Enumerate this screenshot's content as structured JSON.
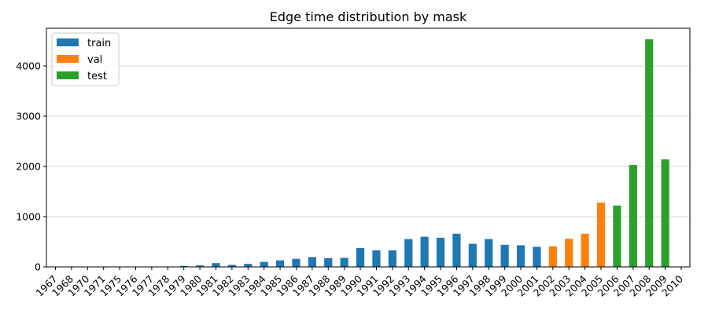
{
  "chart_data": {
    "type": "bar",
    "title": "Edge time distribution by mask",
    "xlabel": "",
    "ylabel": "",
    "ylim": [
      0,
      4750
    ],
    "yticks": [
      0,
      1000,
      2000,
      3000,
      4000
    ],
    "grid": "horizontal",
    "legend_position": "top-left",
    "categories": [
      "1967",
      "1968",
      "1970",
      "1971",
      "1975",
      "1976",
      "1977",
      "1978",
      "1979",
      "1980",
      "1981",
      "1982",
      "1983",
      "1984",
      "1985",
      "1986",
      "1987",
      "1988",
      "1989",
      "1990",
      "1991",
      "1992",
      "1993",
      "1994",
      "1995",
      "1996",
      "1997",
      "1998",
      "1999",
      "2000",
      "2001",
      "2002",
      "2003",
      "2004",
      "2005",
      "2006",
      "2007",
      "2008",
      "2009",
      "2010"
    ],
    "series": [
      {
        "name": "train",
        "color": "#1f77b4",
        "values": [
          2,
          1,
          2,
          2,
          3,
          3,
          4,
          5,
          20,
          30,
          75,
          40,
          60,
          100,
          130,
          160,
          195,
          175,
          180,
          375,
          330,
          330,
          555,
          600,
          580,
          660,
          460,
          555,
          440,
          430,
          400,
          null,
          null,
          null,
          null,
          null,
          null,
          null,
          null,
          null
        ]
      },
      {
        "name": "val",
        "color": "#ff7f0e",
        "values": [
          null,
          null,
          null,
          null,
          null,
          null,
          null,
          null,
          null,
          null,
          null,
          null,
          null,
          null,
          null,
          null,
          null,
          null,
          null,
          null,
          null,
          null,
          null,
          null,
          null,
          null,
          null,
          null,
          null,
          null,
          null,
          410,
          560,
          660,
          1280,
          null,
          null,
          null,
          null,
          null
        ]
      },
      {
        "name": "test",
        "color": "#2ca02c",
        "values": [
          null,
          null,
          null,
          null,
          null,
          null,
          null,
          null,
          null,
          null,
          null,
          null,
          null,
          null,
          null,
          null,
          null,
          null,
          null,
          null,
          null,
          null,
          null,
          null,
          null,
          null,
          null,
          null,
          null,
          null,
          null,
          null,
          null,
          null,
          null,
          1220,
          2030,
          4530,
          2140,
          0
        ]
      }
    ]
  }
}
